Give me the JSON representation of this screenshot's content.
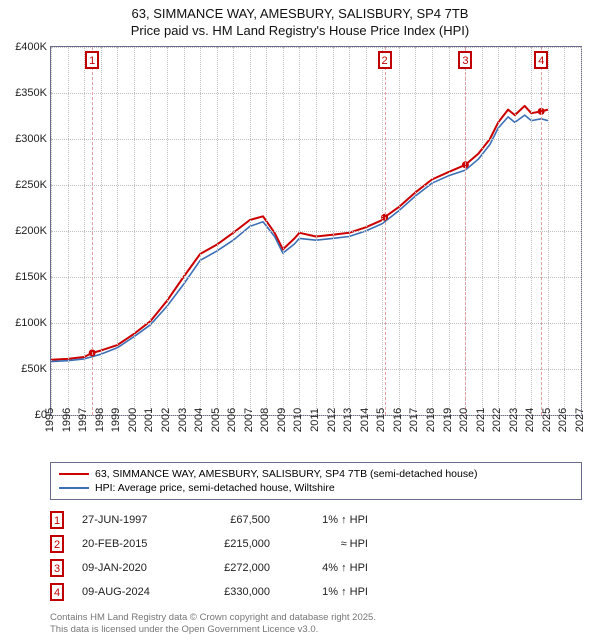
{
  "title": {
    "line1": "63, SIMMANCE WAY, AMESBURY, SALISBURY, SP4 7TB",
    "line2": "Price paid vs. HM Land Registry's House Price Index (HPI)"
  },
  "chart": {
    "type": "line",
    "background_color": "#ffffff",
    "border_color": "#6a6a8a",
    "grid_color": "#bfbfbf",
    "marker_line_color": "#e0a0a0",
    "marker_border_color": "#c00000",
    "x": {
      "min": 1995,
      "max": 2027,
      "ticks": [
        1995,
        1996,
        1997,
        1998,
        1999,
        2000,
        2001,
        2002,
        2003,
        2004,
        2005,
        2006,
        2007,
        2008,
        2009,
        2010,
        2011,
        2012,
        2013,
        2014,
        2015,
        2016,
        2017,
        2018,
        2019,
        2020,
        2021,
        2022,
        2023,
        2024,
        2025,
        2026,
        2027
      ]
    },
    "y": {
      "min": 0,
      "max": 400000,
      "ticks": [
        {
          "v": 0,
          "label": "£0"
        },
        {
          "v": 50000,
          "label": "£50K"
        },
        {
          "v": 100000,
          "label": "£100K"
        },
        {
          "v": 150000,
          "label": "£150K"
        },
        {
          "v": 200000,
          "label": "£200K"
        },
        {
          "v": 250000,
          "label": "£250K"
        },
        {
          "v": 300000,
          "label": "£300K"
        },
        {
          "v": 350000,
          "label": "£350K"
        },
        {
          "v": 400000,
          "label": "£400K"
        }
      ]
    },
    "series": [
      {
        "id": "price_paid",
        "label": "63, SIMMANCE WAY, AMESBURY, SALISBURY, SP4 7TB (semi-detached house)",
        "color": "#cc0000",
        "width": 2,
        "points": [
          [
            1995.0,
            60000
          ],
          [
            1996.0,
            61000
          ],
          [
            1997.0,
            63000
          ],
          [
            1997.49,
            67500
          ],
          [
            1998.0,
            70000
          ],
          [
            1999.0,
            76000
          ],
          [
            2000.0,
            88000
          ],
          [
            2001.0,
            102000
          ],
          [
            2002.0,
            124000
          ],
          [
            2003.0,
            150000
          ],
          [
            2004.0,
            175000
          ],
          [
            2005.0,
            185000
          ],
          [
            2006.0,
            198000
          ],
          [
            2007.0,
            212000
          ],
          [
            2007.8,
            216000
          ],
          [
            2008.5,
            198000
          ],
          [
            2009.0,
            180000
          ],
          [
            2009.7,
            192000
          ],
          [
            2010.0,
            198000
          ],
          [
            2011.0,
            194000
          ],
          [
            2012.0,
            196000
          ],
          [
            2013.0,
            198000
          ],
          [
            2014.0,
            204000
          ],
          [
            2015.0,
            212000
          ],
          [
            2015.14,
            215000
          ],
          [
            2016.0,
            226000
          ],
          [
            2017.0,
            242000
          ],
          [
            2018.0,
            256000
          ],
          [
            2019.0,
            264000
          ],
          [
            2020.02,
            272000
          ],
          [
            2020.8,
            284000
          ],
          [
            2021.5,
            300000
          ],
          [
            2022.0,
            318000
          ],
          [
            2022.6,
            332000
          ],
          [
            2023.0,
            326000
          ],
          [
            2023.6,
            336000
          ],
          [
            2024.0,
            328000
          ],
          [
            2024.6,
            330000
          ],
          [
            2025.0,
            332000
          ]
        ]
      },
      {
        "id": "hpi",
        "label": "HPI: Average price, semi-detached house, Wiltshire",
        "color": "#3b6fb6",
        "width": 1.6,
        "points": [
          [
            1995.0,
            58000
          ],
          [
            1996.0,
            59000
          ],
          [
            1997.0,
            61000
          ],
          [
            1998.0,
            66000
          ],
          [
            1999.0,
            73000
          ],
          [
            2000.0,
            85000
          ],
          [
            2001.0,
            98000
          ],
          [
            2002.0,
            118000
          ],
          [
            2003.0,
            142000
          ],
          [
            2004.0,
            168000
          ],
          [
            2005.0,
            178000
          ],
          [
            2006.0,
            190000
          ],
          [
            2007.0,
            205000
          ],
          [
            2007.8,
            210000
          ],
          [
            2008.5,
            194000
          ],
          [
            2009.0,
            176000
          ],
          [
            2009.7,
            186000
          ],
          [
            2010.0,
            192000
          ],
          [
            2011.0,
            190000
          ],
          [
            2012.0,
            192000
          ],
          [
            2013.0,
            194000
          ],
          [
            2014.0,
            200000
          ],
          [
            2015.0,
            208000
          ],
          [
            2016.0,
            222000
          ],
          [
            2017.0,
            238000
          ],
          [
            2018.0,
            252000
          ],
          [
            2019.0,
            260000
          ],
          [
            2020.0,
            266000
          ],
          [
            2020.8,
            278000
          ],
          [
            2021.5,
            294000
          ],
          [
            2022.0,
            312000
          ],
          [
            2022.6,
            324000
          ],
          [
            2023.0,
            318000
          ],
          [
            2023.6,
            326000
          ],
          [
            2024.0,
            320000
          ],
          [
            2024.6,
            322000
          ],
          [
            2025.0,
            320000
          ]
        ]
      }
    ],
    "sale_markers": [
      {
        "n": "1",
        "year": 1997.49,
        "value": 67500
      },
      {
        "n": "2",
        "year": 2015.14,
        "value": 215000
      },
      {
        "n": "3",
        "year": 2020.02,
        "value": 272000
      },
      {
        "n": "4",
        "year": 2024.6,
        "value": 330000
      }
    ]
  },
  "legend": {
    "items": [
      {
        "color": "#cc0000",
        "label": "63, SIMMANCE WAY, AMESBURY, SALISBURY, SP4 7TB (semi-detached house)"
      },
      {
        "color": "#3b6fb6",
        "label": "HPI: Average price, semi-detached house, Wiltshire"
      }
    ]
  },
  "transactions": [
    {
      "n": "1",
      "date": "27-JUN-1997",
      "price": "£67,500",
      "hpi": "1% ↑ HPI"
    },
    {
      "n": "2",
      "date": "20-FEB-2015",
      "price": "£215,000",
      "hpi": "≈ HPI"
    },
    {
      "n": "3",
      "date": "09-JAN-2020",
      "price": "£272,000",
      "hpi": "4% ↑ HPI"
    },
    {
      "n": "4",
      "date": "09-AUG-2024",
      "price": "£330,000",
      "hpi": "1% ↑ HPI"
    }
  ],
  "footer": {
    "line1": "Contains HM Land Registry data © Crown copyright and database right 2025.",
    "line2": "This data is licensed under the Open Government Licence v3.0."
  },
  "colors": {
    "marker_border": "#c00000",
    "marker_text": "#c00000"
  }
}
